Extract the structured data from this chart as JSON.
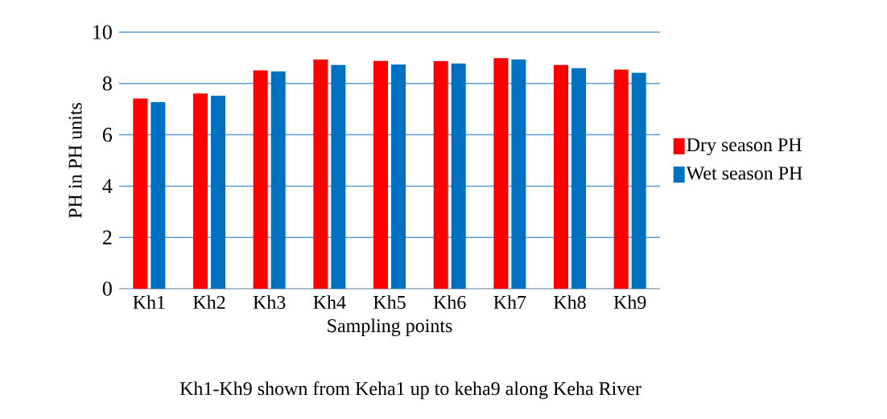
{
  "chart_data": {
    "type": "bar",
    "xlabel": "Sampling points",
    "ylabel": "PH in PH units",
    "annotations": [
      "Kh1-Kh9 shown from Keha1 up to keha9 along Keha River"
    ],
    "categories": [
      "Kh1",
      "Kh2",
      "Kh3",
      "Kh4",
      "Kh5",
      "Kh6",
      "Kh7",
      "Kh8",
      "Kh9"
    ],
    "series": [
      {
        "name": "Dry season PH",
        "color": "#ff0000",
        "values": [
          7.41,
          7.61,
          8.51,
          8.93,
          8.88,
          8.87,
          8.99,
          8.72,
          8.54
        ]
      },
      {
        "name": "Wet season PH",
        "color": "#0070c0",
        "values": [
          7.27,
          7.52,
          8.47,
          8.72,
          8.74,
          8.78,
          8.93,
          8.6,
          8.42
        ]
      }
    ],
    "ylim": [
      0,
      10
    ],
    "yticks": [
      0,
      2,
      4,
      6,
      8,
      10
    ],
    "grid": "y",
    "legend": "right"
  }
}
